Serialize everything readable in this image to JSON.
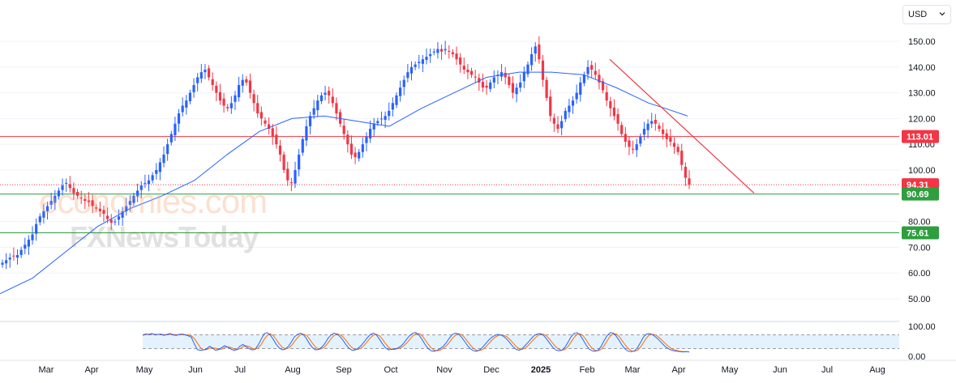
{
  "currency": {
    "selected": "USD"
  },
  "watermark": {
    "line1": "economies.com",
    "line2": "FXNewsToday"
  },
  "colors": {
    "up": "#2962ff",
    "down": "#f23645",
    "ma": "#2962ff",
    "resistance": "#f23645",
    "support": "#2e9e3e",
    "trendline": "#f23645",
    "stoch_k": "#2962ff",
    "stoch_d": "#ff6d00",
    "stoch_band": "#e3f2fd"
  },
  "chart_data": {
    "type": "candlestick",
    "price_axis": {
      "ticks": [
        "150.00",
        "140.00",
        "130.00",
        "120.00",
        "110.00",
        "100.00",
        "80.00",
        "70.00",
        "60.00",
        "50.00"
      ],
      "range": [
        45,
        155
      ]
    },
    "time_axis": {
      "labels": [
        "Mar",
        "Apr",
        "May",
        "Jun",
        "Jul",
        "Aug",
        "Sep",
        "Oct",
        "Nov",
        "Dec",
        "2025",
        "Feb",
        "Mar",
        "Apr",
        "May",
        "Jun",
        "Jul",
        "Aug"
      ]
    },
    "closes": [
      64,
      65,
      66,
      66.5,
      67,
      69,
      71,
      73,
      75,
      79,
      82,
      84,
      86,
      88,
      90,
      92,
      94,
      95,
      93,
      91,
      90,
      89,
      88,
      87.5,
      86,
      85,
      84,
      83,
      81,
      79.5,
      80,
      82,
      84,
      86,
      88,
      90,
      92,
      94,
      95,
      96,
      98,
      100,
      103,
      106,
      110,
      114,
      118,
      122,
      125,
      127,
      130,
      133,
      136,
      138,
      139,
      136,
      133,
      130,
      127,
      125,
      124,
      126,
      129,
      133,
      135,
      134,
      130,
      126,
      122,
      120,
      118,
      116,
      113,
      110,
      106,
      100,
      96,
      95,
      100,
      106,
      112,
      117,
      121,
      124,
      127,
      129,
      130,
      129,
      126,
      122,
      118,
      114,
      110,
      106,
      105,
      107,
      110,
      113,
      116,
      118,
      119,
      120,
      121,
      123,
      126,
      129,
      132,
      135,
      138,
      140,
      141,
      142,
      143,
      144,
      145,
      146,
      147,
      146,
      147,
      146,
      145,
      143,
      141,
      139,
      138,
      137,
      136,
      134,
      132,
      132,
      134,
      136,
      137,
      138,
      136,
      133,
      130,
      132,
      134,
      138,
      141,
      145,
      148,
      143,
      135,
      128,
      121,
      118,
      116,
      119,
      123,
      125,
      127,
      130,
      134,
      137,
      140,
      139,
      137,
      134,
      131,
      127,
      124,
      121,
      118,
      114,
      111,
      109,
      108,
      110,
      113,
      116,
      118,
      119,
      118,
      116,
      114,
      112,
      111,
      109,
      107,
      102,
      97,
      94.31
    ],
    "start_close": 64,
    "ma_points": [
      [
        0,
        52
      ],
      [
        40,
        58
      ],
      [
        80,
        68
      ],
      [
        120,
        78
      ],
      [
        160,
        85
      ],
      [
        200,
        90
      ],
      [
        240,
        96
      ],
      [
        280,
        106
      ],
      [
        320,
        115
      ],
      [
        360,
        120
      ],
      [
        400,
        121
      ],
      [
        440,
        119
      ],
      [
        480,
        117
      ],
      [
        520,
        124
      ],
      [
        560,
        130
      ],
      [
        600,
        136
      ],
      [
        640,
        138
      ],
      [
        680,
        138
      ],
      [
        720,
        137
      ],
      [
        760,
        132
      ],
      [
        800,
        126
      ],
      [
        820,
        124
      ],
      [
        848,
        121
      ]
    ],
    "levels": [
      {
        "value": 113.01,
        "label": "113.01",
        "style": "solid",
        "color": "resistance"
      },
      {
        "value": 94.31,
        "label": "94.31",
        "style": "dotted",
        "color": "resistance"
      },
      {
        "value": 90.69,
        "label": "90.69",
        "style": "solid",
        "color": "support"
      },
      {
        "value": 75.61,
        "label": "75.61",
        "style": "solid",
        "color": "support"
      }
    ],
    "trendline": {
      "from": [
        752,
        143
      ],
      "to": [
        930,
        91
      ]
    },
    "stochastic": {
      "ticks": [
        "100.00",
        "0.00"
      ],
      "band": [
        20,
        80
      ],
      "k": [
        80,
        84,
        82,
        86,
        80,
        82,
        84,
        78,
        82,
        86,
        80,
        78,
        82,
        84,
        80,
        76,
        70,
        40,
        15,
        12,
        14,
        18,
        30,
        22,
        12,
        15,
        24,
        32,
        26,
        18,
        12,
        15,
        30,
        38,
        28,
        20,
        14,
        16,
        35,
        60,
        85,
        90,
        80,
        60,
        38,
        22,
        14,
        18,
        30,
        50,
        72,
        82,
        88,
        80,
        62,
        40,
        22,
        14,
        16,
        26,
        42,
        64,
        80,
        88,
        84,
        72,
        56,
        36,
        20,
        12,
        14,
        22,
        34,
        50,
        68,
        82,
        88,
        80,
        60,
        40,
        22,
        14,
        16,
        18,
        22,
        30,
        44,
        62,
        78,
        88,
        90,
        80,
        60,
        38,
        20,
        10,
        8,
        12,
        20,
        30,
        46,
        66,
        82,
        88,
        84,
        70,
        52,
        32,
        18,
        10,
        8,
        14,
        26,
        42,
        58,
        70,
        78,
        82,
        80,
        72,
        60,
        44,
        28,
        16,
        12,
        20,
        34,
        48,
        64,
        78,
        84,
        86,
        78,
        62,
        44,
        26,
        14,
        10,
        12,
        24,
        46,
        70,
        86,
        90,
        80,
        60,
        36,
        18,
        10,
        8,
        12,
        30,
        56,
        78,
        90,
        88,
        74,
        54,
        32,
        16,
        8,
        6,
        10,
        24,
        48,
        72,
        84,
        86,
        80,
        70,
        58,
        44,
        30,
        20,
        14,
        10,
        8,
        6,
        5,
        6,
        5
      ],
      "d": [
        78,
        81,
        83,
        84,
        83,
        82,
        82,
        81,
        81,
        82,
        82,
        81,
        80,
        81,
        81,
        80,
        76,
        64,
        44,
        24,
        14,
        15,
        21,
        23,
        21,
        16,
        17,
        24,
        27,
        25,
        19,
        15,
        19,
        28,
        32,
        29,
        21,
        17,
        22,
        37,
        60,
        78,
        85,
        77,
        59,
        40,
        25,
        18,
        21,
        33,
        51,
        68,
        81,
        83,
        77,
        61,
        41,
        25,
        17,
        19,
        28,
        44,
        62,
        77,
        84,
        81,
        71,
        55,
        37,
        23,
        15,
        16,
        23,
        35,
        51,
        67,
        79,
        83,
        76,
        60,
        41,
        25,
        17,
        16,
        19,
        23,
        32,
        45,
        61,
        76,
        85,
        86,
        77,
        59,
        39,
        23,
        13,
        10,
        13,
        21,
        32,
        47,
        65,
        79,
        85,
        81,
        69,
        51,
        34,
        20,
        12,
        11,
        16,
        27,
        42,
        57,
        69,
        77,
        80,
        78,
        71,
        59,
        44,
        29,
        19,
        16,
        22,
        34,
        49,
        63,
        75,
        83,
        83,
        75,
        61,
        44,
        28,
        17,
        12,
        15,
        27,
        47,
        67,
        82,
        85,
        77,
        59,
        38,
        21,
        12,
        10,
        17,
        33,
        55,
        75,
        85,
        84,
        72,
        53,
        34,
        19,
        10,
        8,
        13,
        27,
        48,
        68,
        81,
        83,
        79,
        69,
        57,
        44,
        31,
        21,
        15,
        11,
        8,
        6,
        6,
        5
      ]
    }
  }
}
